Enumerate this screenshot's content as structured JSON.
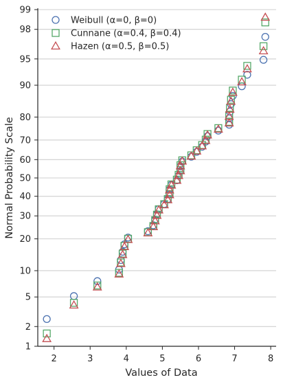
{
  "chart_data": {
    "type": "scatter",
    "xlabel": "Values of Data",
    "ylabel": "Normal Probability Scale",
    "xlim": [
      1.55,
      8.15
    ],
    "ylim_percent": [
      1,
      99
    ],
    "y_scale": "normal-probability",
    "grid": "horizontal",
    "legend_position": "top-left",
    "x_ticks": [
      2,
      3,
      4,
      5,
      6,
      7,
      8
    ],
    "y_ticks": [
      1,
      2,
      5,
      10,
      20,
      30,
      40,
      50,
      60,
      70,
      80,
      90,
      95,
      98,
      99
    ],
    "x_values": [
      1.8,
      2.55,
      3.2,
      3.8,
      3.85,
      3.9,
      3.95,
      4.05,
      4.6,
      4.75,
      4.8,
      4.85,
      4.9,
      5.05,
      5.15,
      5.2,
      5.2,
      5.25,
      5.4,
      5.45,
      5.5,
      5.5,
      5.55,
      5.8,
      5.95,
      6.1,
      6.2,
      6.25,
      6.55,
      6.85,
      6.85,
      6.87,
      6.9,
      6.95,
      7.2,
      7.35,
      7.8,
      7.85
    ],
    "series": [
      {
        "name": "Weibull (α=0, β=0)",
        "color": "#4c72b0",
        "marker": "circle",
        "values": [
          2.56,
          5.13,
          7.69,
          10.26,
          12.82,
          15.38,
          17.95,
          20.51,
          23.08,
          25.64,
          28.21,
          30.77,
          33.33,
          35.9,
          38.46,
          41.03,
          43.59,
          46.15,
          48.72,
          51.28,
          53.85,
          56.41,
          58.97,
          61.54,
          64.1,
          66.67,
          69.23,
          71.79,
          74.36,
          76.92,
          79.49,
          82.05,
          84.62,
          87.18,
          89.74,
          92.31,
          94.87,
          97.44
        ]
      },
      {
        "name": "Cunnane (α=0.4, β=0.4)",
        "color": "#55a868",
        "marker": "square",
        "values": [
          1.58,
          4.22,
          6.86,
          9.5,
          12.14,
          14.78,
          17.41,
          20.05,
          22.69,
          25.33,
          27.97,
          30.61,
          33.25,
          35.88,
          38.52,
          41.16,
          43.8,
          46.44,
          49.08,
          51.72,
          54.35,
          56.99,
          59.63,
          62.27,
          64.91,
          67.55,
          70.18,
          72.82,
          75.46,
          78.1,
          80.74,
          83.38,
          86.02,
          88.65,
          91.29,
          93.93,
          96.57,
          98.42
        ]
      },
      {
        "name": "Hazen (α=0.5, β=0.5)",
        "color": "#c44e52",
        "marker": "triangle",
        "values": [
          1.32,
          3.95,
          6.58,
          9.21,
          11.84,
          14.47,
          17.11,
          19.74,
          22.37,
          25.0,
          27.63,
          30.26,
          32.89,
          35.53,
          38.16,
          40.79,
          43.42,
          46.05,
          48.68,
          51.32,
          53.95,
          56.58,
          59.21,
          61.84,
          64.47,
          67.11,
          69.74,
          72.37,
          75.0,
          77.63,
          80.26,
          82.89,
          85.53,
          88.16,
          90.79,
          93.42,
          96.05,
          98.68
        ]
      }
    ]
  }
}
